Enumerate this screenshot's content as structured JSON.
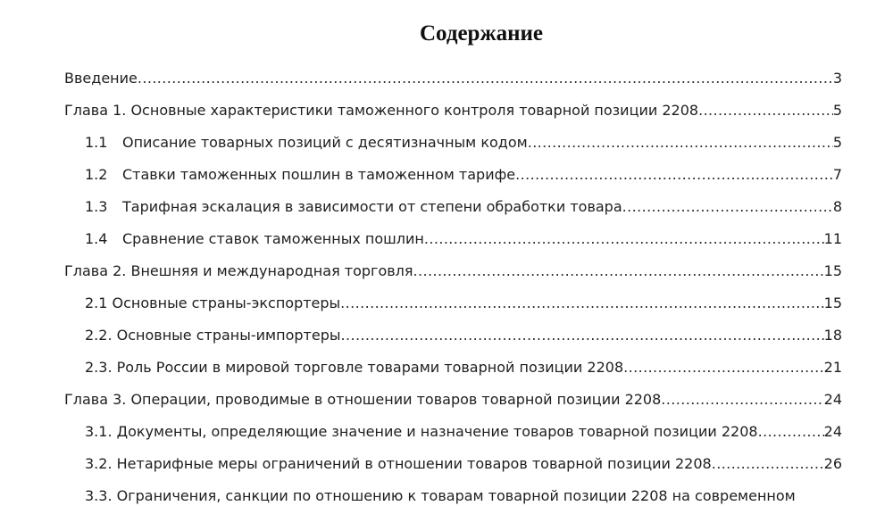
{
  "title": "Содержание",
  "colors": {
    "background": "#ffffff",
    "text": "#1e1e1e"
  },
  "toc": {
    "leader_char": ".",
    "entries": [
      {
        "text": "Введение",
        "page": "3"
      },
      {
        "text": "Глава 1. Основные характеристики таможенного контроля товарной позиции 2208",
        "page": "5"
      },
      {
        "num": "1.1",
        "text": "Описание товарных позиций с десятизначным кодом",
        "page": "5"
      },
      {
        "num": "1.2",
        "text": "Ставки таможенных пошлин в таможенном тарифе",
        "page": "7"
      },
      {
        "num": "1.3",
        "text": "Тарифная эскалация в зависимости от степени обработки товара",
        "page": "8"
      },
      {
        "num": "1.4",
        "text": "Сравнение ставок таможенных пошлин",
        "page": "11"
      },
      {
        "text": "Глава 2. Внешняя и международная торговля",
        "page": "15"
      },
      {
        "text": "2.1 Основные страны-экспортеры",
        "page": "15"
      },
      {
        "text": "2.2. Основные страны-импортеры",
        "page": "18"
      },
      {
        "text": "2.3. Роль России в мировой торговле товарами товарной позиции 2208",
        "page": "21"
      },
      {
        "text": "Глава 3. Операции, проводимые в отношении товаров товарной позиции 2208",
        "page": "24"
      },
      {
        "text": "3.1. Документы, определяющие значение и назначение товаров товарной позиции 2208",
        "page": "24"
      },
      {
        "text": "3.2. Нетарифные меры ограничений в отношении товаров товарной позиции 2208",
        "page": "26"
      },
      {
        "text": "3.3. Ограничения, санкции по отношению к товарам товарной позиции 2208 на современном",
        "page": ""
      }
    ]
  }
}
